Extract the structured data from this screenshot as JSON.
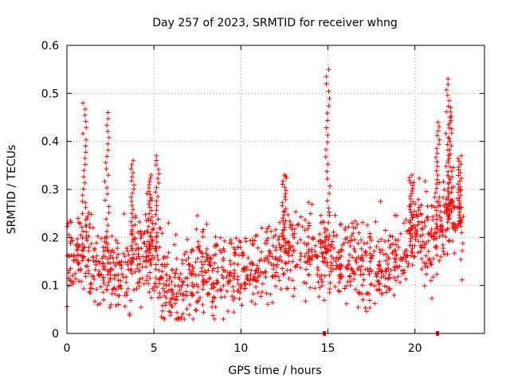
{
  "chart_data": {
    "type": "scatter",
    "title": "Day 257 of 2023, SRMTID for receiver whng",
    "xlabel": "GPS time / hours",
    "ylabel": "SRMTID / TECUs",
    "xlim": [
      0,
      24
    ],
    "ylim": [
      0,
      0.6
    ],
    "x_ticks": [
      0,
      5,
      10,
      15,
      20
    ],
    "x_tick_labels": [
      "0",
      "5",
      "10",
      "15",
      "20"
    ],
    "y_ticks": [
      0,
      0.1,
      0.2,
      0.3,
      0.4,
      0.5,
      0.6
    ],
    "y_tick_labels": [
      "0",
      "0.1",
      "0.2",
      "0.3",
      "0.4",
      "0.5",
      "0.6"
    ],
    "grid": true,
    "marker": "+",
    "color": "#ff0000",
    "zero_markers": [
      14.8,
      21.3
    ],
    "trend": [
      [
        0.0,
        0.17
      ],
      [
        0.5,
        0.16
      ],
      [
        1.0,
        0.16
      ],
      [
        1.5,
        0.14
      ],
      [
        2.0,
        0.14
      ],
      [
        2.5,
        0.13
      ],
      [
        3.0,
        0.12
      ],
      [
        3.5,
        0.13
      ],
      [
        4.0,
        0.16
      ],
      [
        4.5,
        0.18
      ],
      [
        5.0,
        0.15
      ],
      [
        5.5,
        0.11
      ],
      [
        6.0,
        0.09
      ],
      [
        6.5,
        0.09
      ],
      [
        7.0,
        0.1
      ],
      [
        7.5,
        0.12
      ],
      [
        8.0,
        0.12
      ],
      [
        8.5,
        0.12
      ],
      [
        9.0,
        0.12
      ],
      [
        9.5,
        0.13
      ],
      [
        10.0,
        0.13
      ],
      [
        10.5,
        0.13
      ],
      [
        11.0,
        0.14
      ],
      [
        11.5,
        0.15
      ],
      [
        12.0,
        0.16
      ],
      [
        12.5,
        0.17
      ],
      [
        13.0,
        0.17
      ],
      [
        13.5,
        0.17
      ],
      [
        14.0,
        0.17
      ],
      [
        14.5,
        0.16
      ],
      [
        15.0,
        0.17
      ],
      [
        15.5,
        0.14
      ],
      [
        16.0,
        0.15
      ],
      [
        16.5,
        0.15
      ],
      [
        17.0,
        0.14
      ],
      [
        17.5,
        0.13
      ],
      [
        18.0,
        0.14
      ],
      [
        18.5,
        0.15
      ],
      [
        19.0,
        0.14
      ],
      [
        19.5,
        0.18
      ],
      [
        20.0,
        0.2
      ],
      [
        20.5,
        0.21
      ],
      [
        21.0,
        0.18
      ],
      [
        21.5,
        0.23
      ],
      [
        22.0,
        0.25
      ],
      [
        22.5,
        0.23
      ],
      [
        22.8,
        0.21
      ]
    ],
    "spikes": [
      {
        "x": 1.0,
        "peak": 0.48
      },
      {
        "x": 2.3,
        "peak": 0.46
      },
      {
        "x": 3.8,
        "peak": 0.36
      },
      {
        "x": 4.8,
        "peak": 0.33
      },
      {
        "x": 5.2,
        "peak": 0.37
      },
      {
        "x": 12.5,
        "peak": 0.33
      },
      {
        "x": 15.0,
        "peak": 0.55
      },
      {
        "x": 19.8,
        "peak": 0.33
      },
      {
        "x": 21.3,
        "peak": 0.44
      },
      {
        "x": 21.9,
        "peak": 0.53
      },
      {
        "x": 22.0,
        "peak": 0.47
      },
      {
        "x": 22.6,
        "peak": 0.37
      }
    ]
  }
}
